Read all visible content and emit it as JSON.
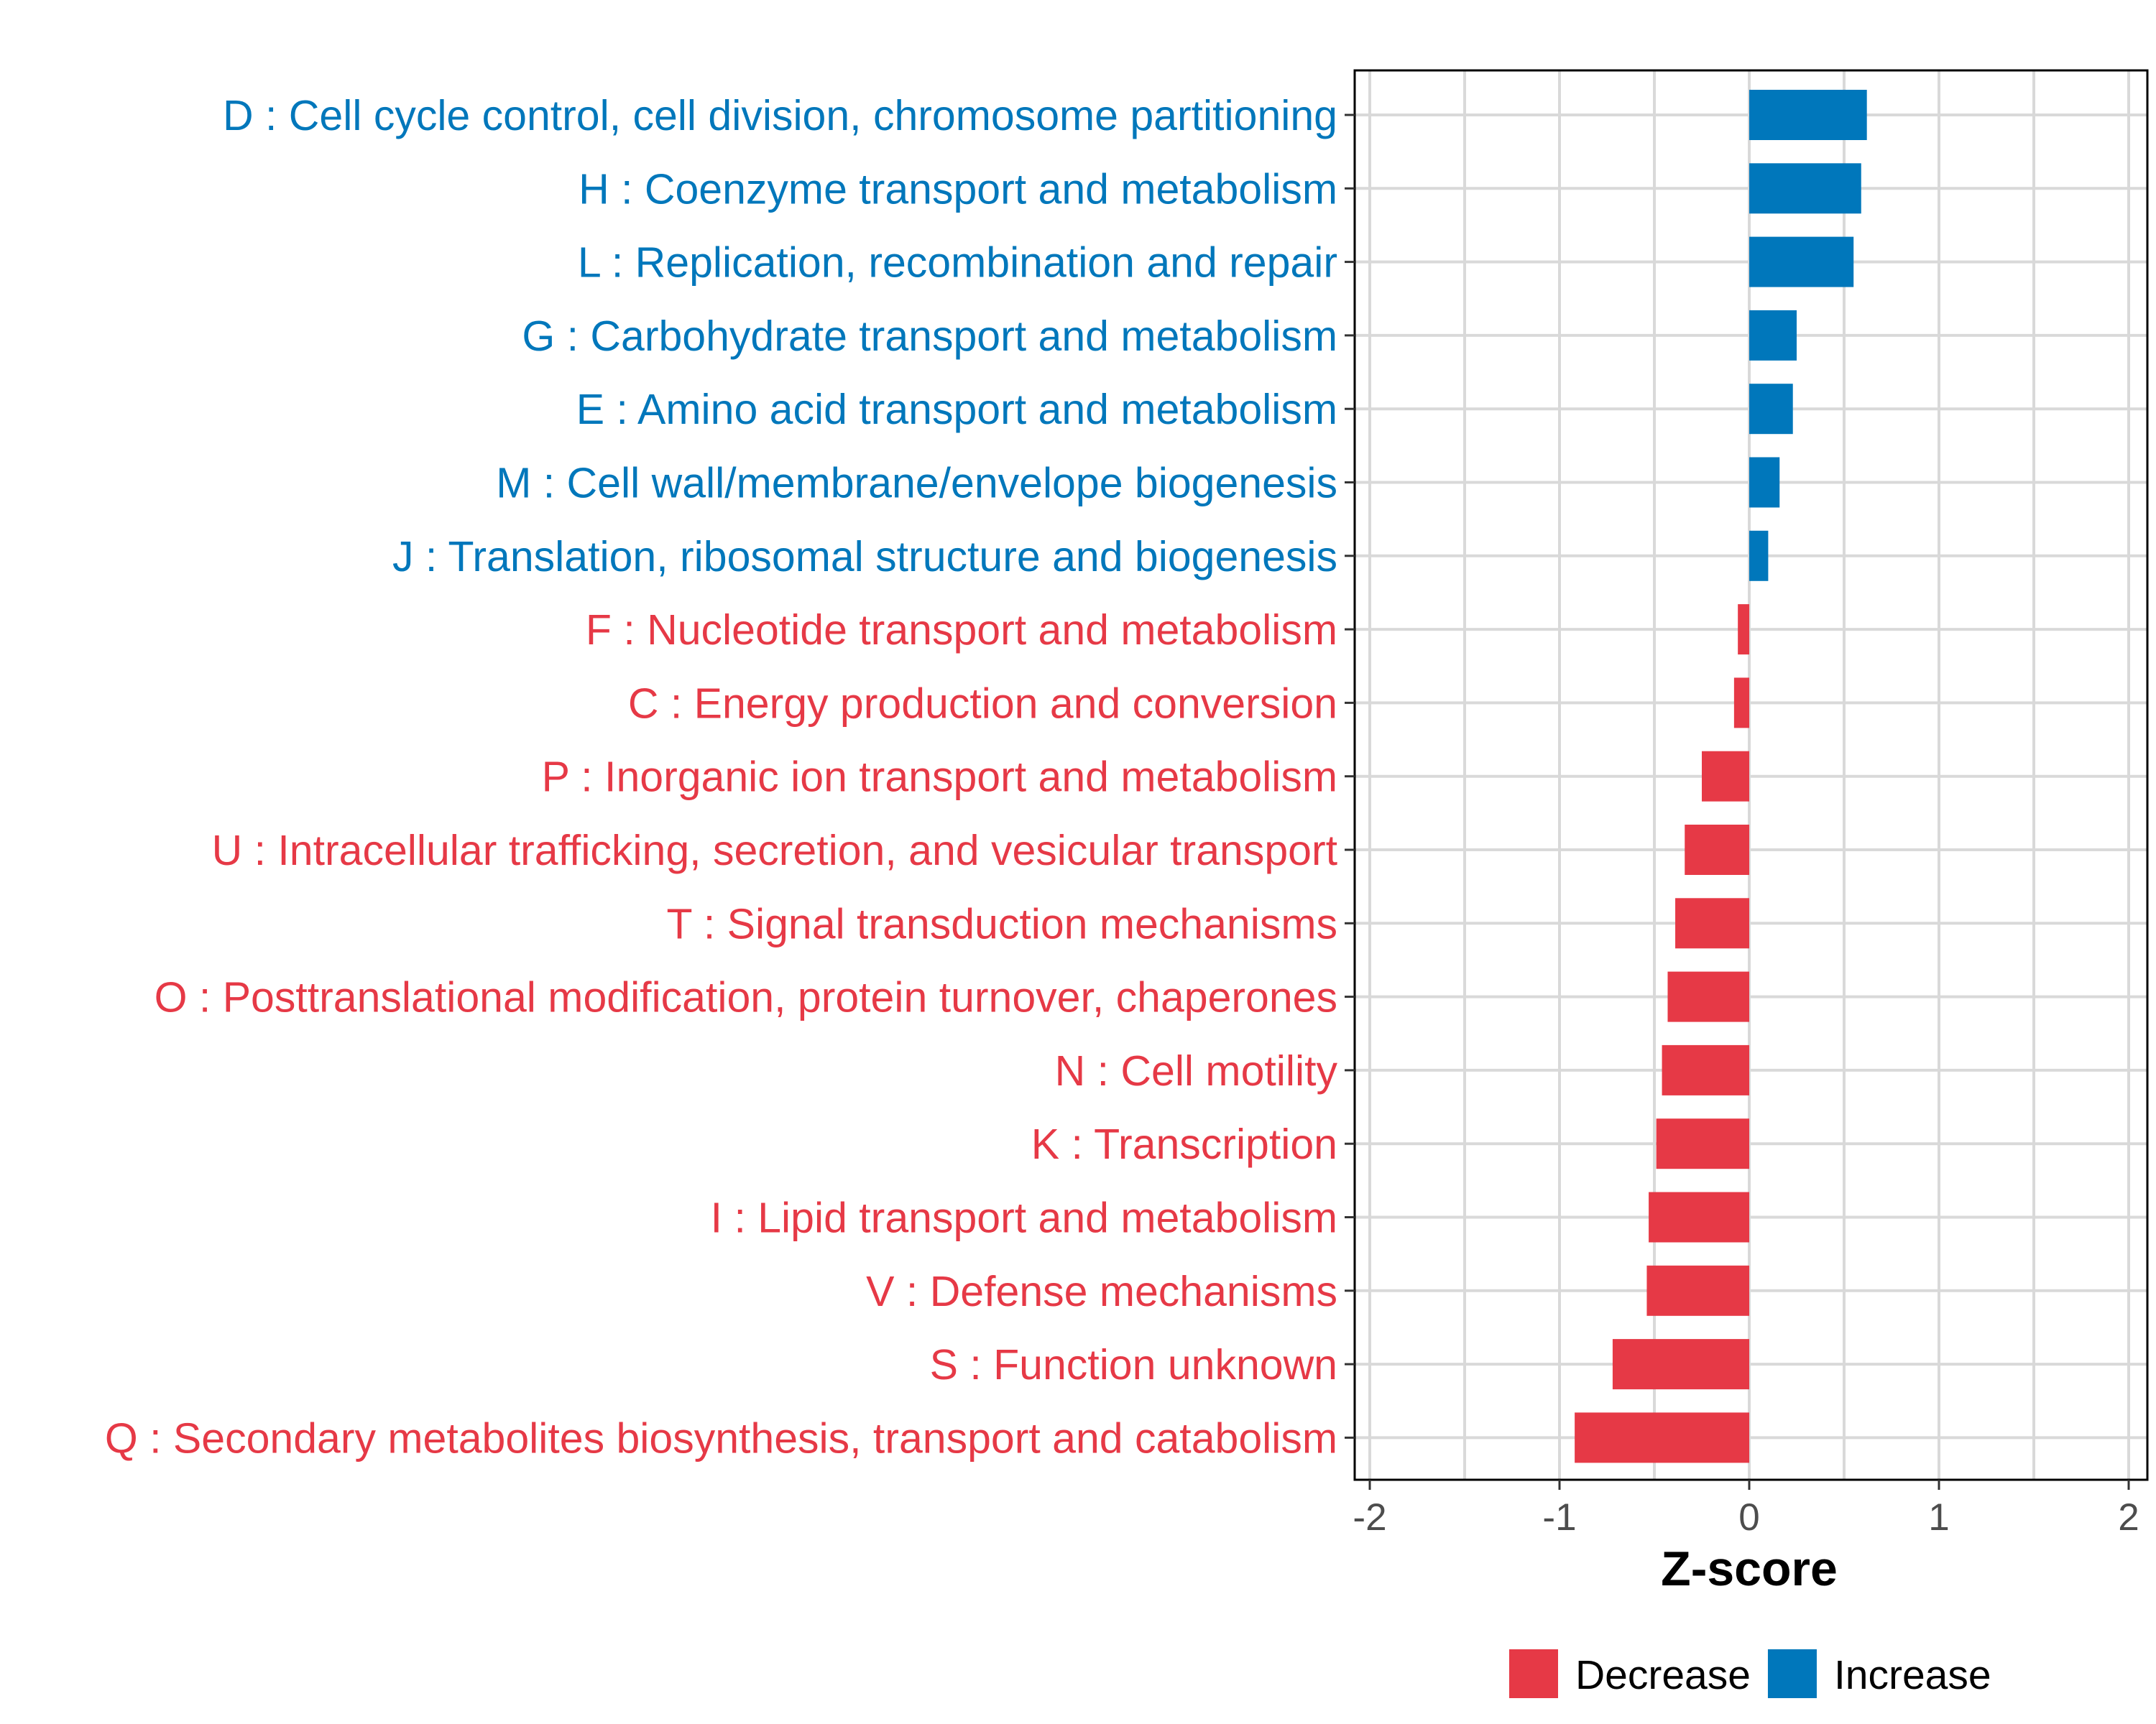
{
  "chart_data": {
    "type": "bar",
    "orientation": "horizontal",
    "title": "",
    "xlabel": "Z-score",
    "ylabel": "",
    "xlim": [
      -2.1,
      2.1
    ],
    "xticks": [
      -2,
      -1,
      0,
      1,
      2
    ],
    "xtick_labels": [
      "-2",
      "-1",
      "0",
      "1",
      "2"
    ],
    "grid": true,
    "legend_position": "bottom",
    "colors": {
      "Decrease": "#E63946",
      "Increase": "#0077BB"
    },
    "categories": [
      "D : Cell cycle control, cell division, chromosome partitioning",
      "H : Coenzyme transport and metabolism",
      "L : Replication, recombination and repair",
      "G : Carbohydrate transport and metabolism",
      "E : Amino acid transport and metabolism",
      "M : Cell wall/membrane/envelope biogenesis",
      "J : Translation, ribosomal structure and biogenesis",
      "F : Nucleotide transport and metabolism",
      "C : Energy production and conversion",
      "P : Inorganic ion transport and metabolism",
      "U : Intracellular trafficking, secretion, and vesicular transport",
      "T : Signal transduction mechanisms",
      "O : Posttranslational modification, protein turnover, chaperones",
      "N : Cell motility",
      "K : Transcription",
      "I : Lipid transport and metabolism",
      "V : Defense mechanisms",
      "S : Function unknown",
      "Q : Secondary metabolites biosynthesis, transport and catabolism"
    ],
    "values": [
      0.62,
      0.59,
      0.55,
      0.25,
      0.23,
      0.16,
      0.1,
      -0.06,
      -0.08,
      -0.25,
      -0.34,
      -0.39,
      -0.43,
      -0.46,
      -0.49,
      -0.53,
      -0.54,
      -0.72,
      -0.92
    ],
    "groups": [
      "Increase",
      "Increase",
      "Increase",
      "Increase",
      "Increase",
      "Increase",
      "Increase",
      "Decrease",
      "Decrease",
      "Decrease",
      "Decrease",
      "Decrease",
      "Decrease",
      "Decrease",
      "Decrease",
      "Decrease",
      "Decrease",
      "Decrease",
      "Decrease"
    ],
    "legend": [
      "Decrease",
      "Increase"
    ]
  }
}
